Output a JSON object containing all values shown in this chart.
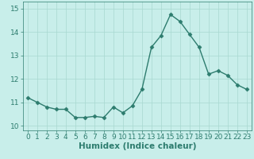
{
  "x": [
    0,
    1,
    2,
    3,
    4,
    5,
    6,
    7,
    8,
    9,
    10,
    11,
    12,
    13,
    14,
    15,
    16,
    17,
    18,
    19,
    20,
    21,
    22,
    23
  ],
  "y": [
    11.2,
    11.0,
    10.8,
    10.7,
    10.7,
    10.35,
    10.35,
    10.4,
    10.35,
    10.8,
    10.55,
    10.85,
    11.55,
    13.35,
    13.85,
    14.75,
    14.45,
    13.9,
    13.35,
    12.2,
    12.35,
    12.15,
    11.75,
    11.55
  ],
  "line_color": "#2d7c6e",
  "marker": "D",
  "markersize": 2.5,
  "linewidth": 1.0,
  "bg_color": "#c8eeea",
  "grid_color": "#a8d8d0",
  "xlabel": "Humidex (Indice chaleur)",
  "xlim": [
    -0.5,
    23.5
  ],
  "ylim": [
    9.8,
    15.3
  ],
  "yticks": [
    10,
    11,
    12,
    13,
    14,
    15
  ],
  "xticks": [
    0,
    1,
    2,
    3,
    4,
    5,
    6,
    7,
    8,
    9,
    10,
    11,
    12,
    13,
    14,
    15,
    16,
    17,
    18,
    19,
    20,
    21,
    22,
    23
  ],
  "xlabel_fontsize": 7.5,
  "tick_fontsize": 6.5,
  "text_color": "#2d7c6e"
}
